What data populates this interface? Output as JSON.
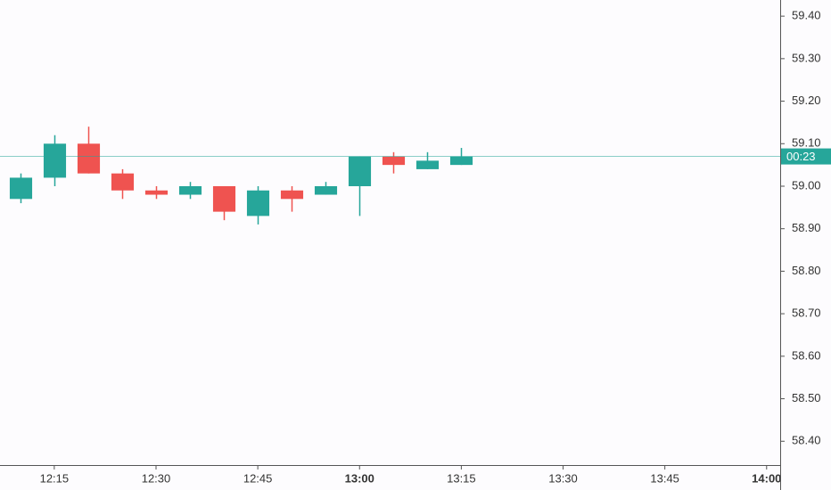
{
  "chart_data": {
    "type": "candlestick",
    "x": [
      "12:10",
      "12:15",
      "12:20",
      "12:25",
      "12:30",
      "12:35",
      "12:40",
      "12:45",
      "12:50",
      "12:55",
      "13:00",
      "13:05",
      "13:10",
      "13:15"
    ],
    "open": [
      58.97,
      59.02,
      59.1,
      59.03,
      58.99,
      58.98,
      59.0,
      58.93,
      58.99,
      58.98,
      59.0,
      59.07,
      59.04,
      59.05
    ],
    "high": [
      59.03,
      59.12,
      59.14,
      59.04,
      59.0,
      59.01,
      59.0,
      59.0,
      59.0,
      59.01,
      59.07,
      59.08,
      59.08,
      59.09
    ],
    "low": [
      58.96,
      59.0,
      59.03,
      58.97,
      58.97,
      58.97,
      58.92,
      58.91,
      58.94,
      58.98,
      58.93,
      59.03,
      59.04,
      59.05
    ],
    "close": [
      59.02,
      59.1,
      59.03,
      58.99,
      58.98,
      59.0,
      58.94,
      58.99,
      58.97,
      59.0,
      59.07,
      59.05,
      59.06,
      59.07
    ],
    "up_color": "#26a69a",
    "down_color": "#ef5350",
    "last_price": 59.07,
    "countdown": "00:23",
    "xlim": [
      "12:07",
      "14:02"
    ],
    "xticks": [
      "12:15",
      "12:30",
      "12:45",
      "13:00",
      "13:15",
      "13:30",
      "13:45",
      "14:00"
    ],
    "ylim": [
      58.344,
      59.438
    ],
    "yticks": [
      {
        "value": 58.4,
        "label": "58.40"
      },
      {
        "value": 58.5,
        "label": "58.50"
      },
      {
        "value": 58.6,
        "label": "58.60"
      },
      {
        "value": 58.7,
        "label": "58.70"
      },
      {
        "value": 58.8,
        "label": "58.80"
      },
      {
        "value": 58.9,
        "label": "58.90"
      },
      {
        "value": 59.0,
        "label": "59.00"
      },
      {
        "value": 59.1,
        "label": "59.10"
      },
      {
        "value": 59.2,
        "label": "59.20"
      },
      {
        "value": 59.3,
        "label": "59.30"
      },
      {
        "value": 59.4,
        "label": "59.40"
      }
    ]
  }
}
